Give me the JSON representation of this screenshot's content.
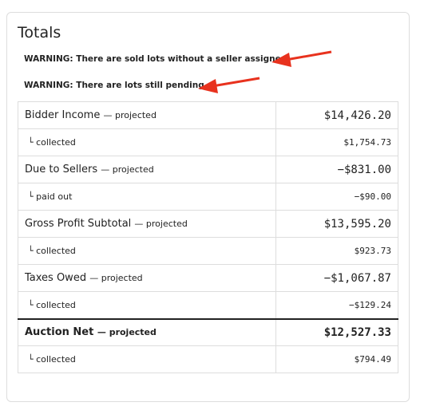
{
  "header": {
    "title": "Totals"
  },
  "warnings": [
    "WARNING: There are sold lots without a seller assigned.",
    "WARNING: There are lots still pending."
  ],
  "table": {
    "rows": [
      {
        "label": "Bidder Income",
        "note": "— projected",
        "value": "$14,426.20"
      },
      {
        "label": "└ collected",
        "value": "$1,754.73"
      },
      {
        "label": "Due to Sellers",
        "note": "— projected",
        "value": "−$831.00"
      },
      {
        "label": "└ paid out",
        "value": "−$90.00"
      },
      {
        "label": "Gross Profit Subtotal",
        "note": "— projected",
        "value": "$13,595.20"
      },
      {
        "label": "└ collected",
        "value": "$923.73"
      },
      {
        "label": "Taxes Owed",
        "note": "— projected",
        "value": "−$1,067.87"
      },
      {
        "label": "└ collected",
        "value": "−$129.24"
      },
      {
        "label": "Auction Net",
        "note": "— projected",
        "value": "$12,527.33",
        "bold": true
      },
      {
        "label": "└ collected",
        "value": "$794.49"
      }
    ]
  }
}
